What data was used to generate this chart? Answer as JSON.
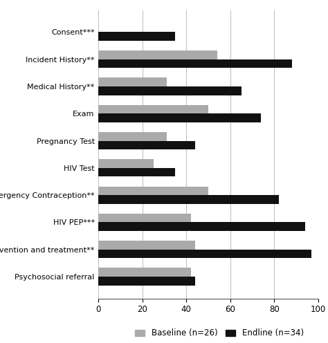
{
  "categories": [
    "Psychosocial referral",
    "STI prevention and treatment**",
    "HIV PEP***",
    "Emergency Contraception**",
    "HIV Test",
    "Pregnancy Test",
    "Exam",
    "Medical History**",
    "Incident History**",
    "Consent***"
  ],
  "baseline": [
    42,
    44,
    42,
    50,
    25,
    31,
    50,
    31,
    54,
    0
  ],
  "endline": [
    44,
    97,
    94,
    82,
    35,
    44,
    74,
    65,
    88,
    35
  ],
  "baseline_color": "#aaaaaa",
  "endline_color": "#111111",
  "xlim": [
    0,
    100
  ],
  "xticks": [
    0,
    20,
    40,
    60,
    80,
    100
  ],
  "bar_height": 0.32,
  "legend_baseline": "Baseline (n=26)",
  "legend_endline": "Endline (n=34)",
  "figsize": [
    4.74,
    4.96
  ],
  "dpi": 100
}
